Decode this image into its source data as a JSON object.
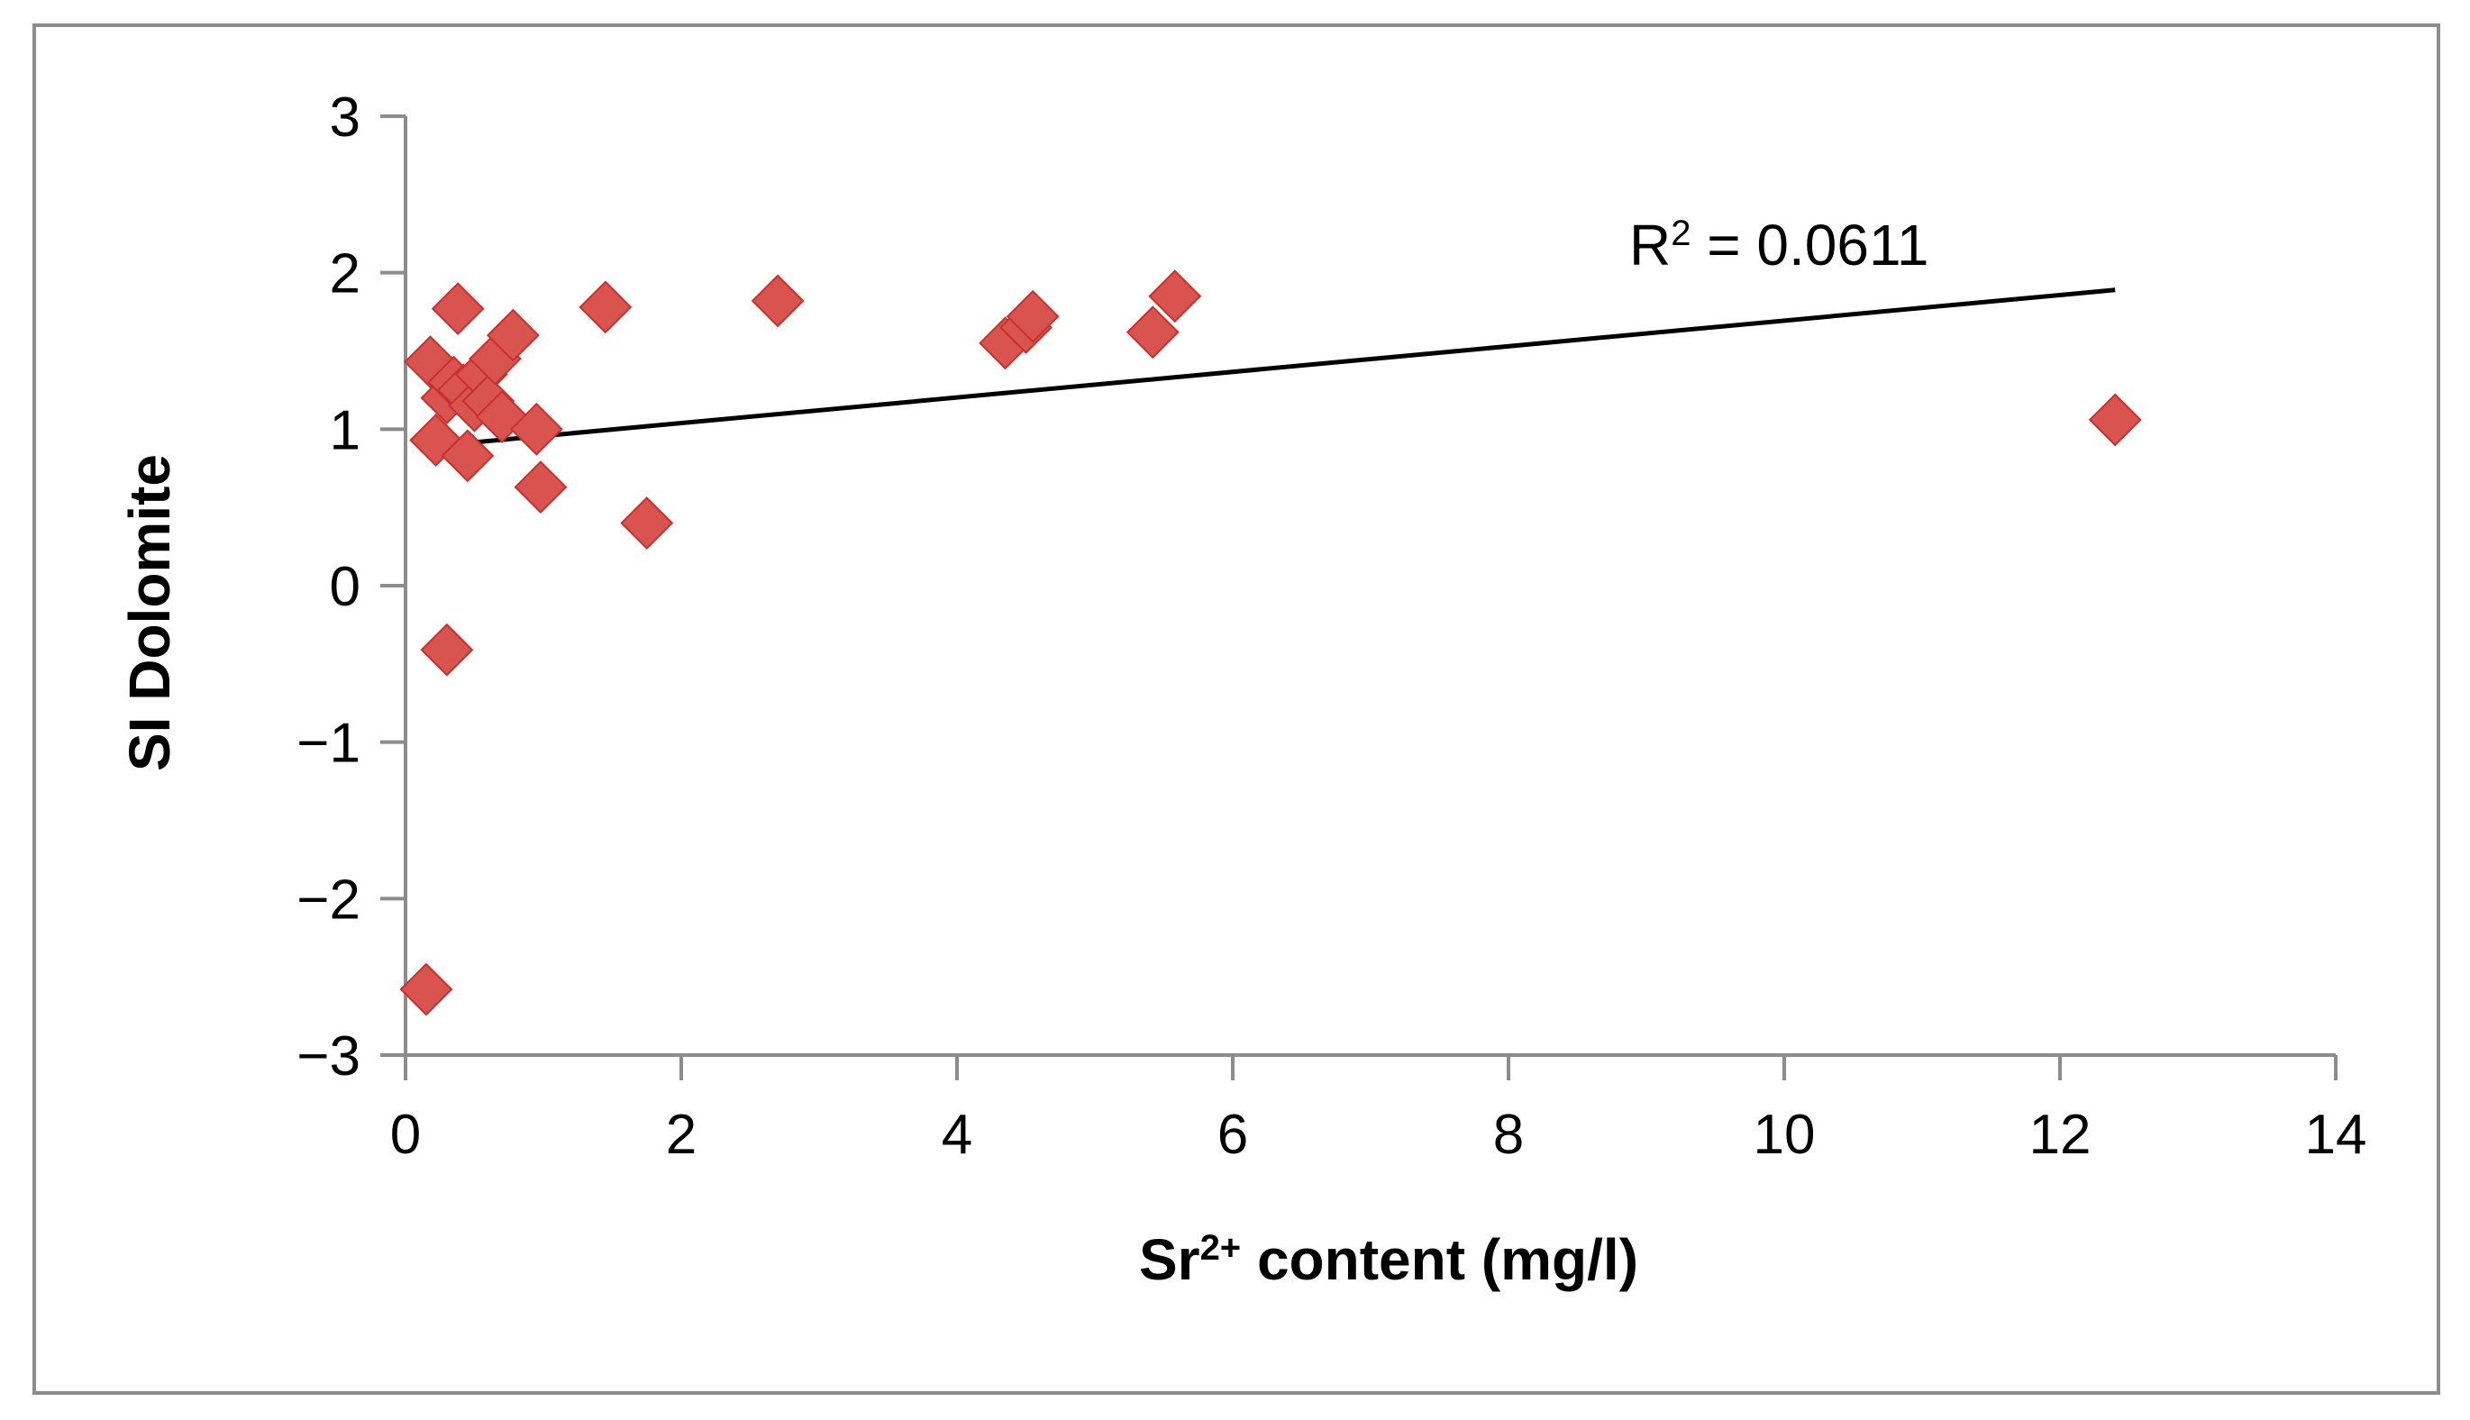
{
  "chart_data": {
    "type": "scatter",
    "title": "",
    "xlabel_main": "Sr",
    "xlabel_sup": "2+",
    "xlabel_rest": " content (mg/l)",
    "ylabel": "SI  Dolomite",
    "xlim": [
      0,
      14
    ],
    "ylim": [
      -3,
      3
    ],
    "x_ticks": [
      "0",
      "2",
      "4",
      "6",
      "8",
      "10",
      "12",
      "14"
    ],
    "y_ticks": [
      "3",
      "2",
      "1",
      "0",
      "−1",
      "−2",
      "−3"
    ],
    "x_tick_values": [
      0,
      2,
      4,
      6,
      8,
      10,
      12,
      14
    ],
    "y_tick_values": [
      3,
      2,
      1,
      0,
      -1,
      -2,
      -3
    ],
    "grid": false,
    "legend": "none",
    "marker": "diamond",
    "marker_color": "#d9534f",
    "trendline": {
      "type": "linear",
      "x": [
        0.18,
        12.4
      ],
      "y": [
        0.89,
        1.89
      ],
      "color": "#000000",
      "label_main": "R",
      "label_sup": "2",
      "label_rest": " = 0.0611"
    },
    "points": [
      {
        "x": 0.18,
        "y": 1.43
      },
      {
        "x": 0.22,
        "y": 0.93
      },
      {
        "x": 0.3,
        "y": 1.2
      },
      {
        "x": 0.35,
        "y": 1.3
      },
      {
        "x": 0.38,
        "y": 1.77
      },
      {
        "x": 0.42,
        "y": 1.25
      },
      {
        "x": 0.45,
        "y": 0.83
      },
      {
        "x": 0.5,
        "y": 1.15
      },
      {
        "x": 0.55,
        "y": 1.35
      },
      {
        "x": 0.6,
        "y": 1.18
      },
      {
        "x": 0.65,
        "y": 1.45
      },
      {
        "x": 0.7,
        "y": 1.08
      },
      {
        "x": 0.78,
        "y": 1.6
      },
      {
        "x": 0.95,
        "y": 1.0
      },
      {
        "x": 0.98,
        "y": 0.63
      },
      {
        "x": 1.45,
        "y": 1.78
      },
      {
        "x": 1.75,
        "y": 0.4
      },
      {
        "x": 2.7,
        "y": 1.82
      },
      {
        "x": 4.35,
        "y": 1.55
      },
      {
        "x": 4.5,
        "y": 1.65
      },
      {
        "x": 4.55,
        "y": 1.72
      },
      {
        "x": 5.42,
        "y": 1.62
      },
      {
        "x": 5.58,
        "y": 1.85
      },
      {
        "x": 0.3,
        "y": -0.41
      },
      {
        "x": 0.15,
        "y": -2.58
      },
      {
        "x": 12.4,
        "y": 1.06
      }
    ]
  }
}
